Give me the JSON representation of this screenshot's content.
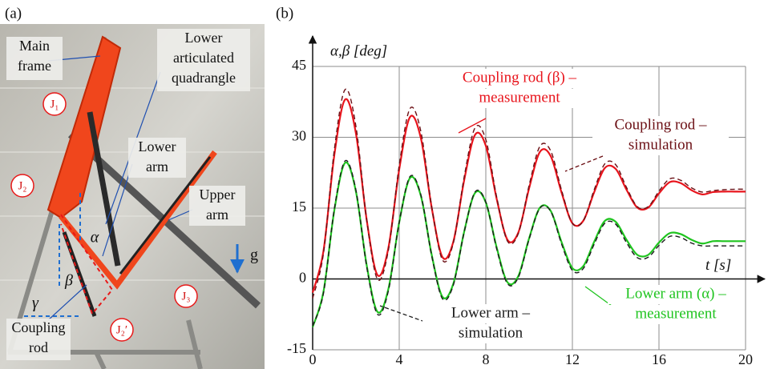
{
  "panel_a": {
    "label": "(a)",
    "callouts": [
      [
        "Main",
        "frame"
      ],
      [
        "Lower",
        "articulated",
        "quadrangle"
      ],
      [
        "Lower",
        "arm"
      ],
      [
        "Upper",
        "arm"
      ],
      [
        "Coupling",
        "rod"
      ]
    ],
    "joints": [
      "J₁",
      "J₂",
      "J₃",
      "J₂′"
    ],
    "angles": [
      "α",
      "β",
      "γ"
    ],
    "gravity": "g"
  },
  "chart_data": {
    "type": "line",
    "label": "(b)",
    "y_label": "α,β [deg]",
    "x_label": "t [s]",
    "xlim": [
      0,
      20
    ],
    "ylim": [
      -15,
      45
    ],
    "xticks": [
      0,
      4,
      8,
      12,
      16,
      20
    ],
    "yticks": [
      -15,
      0,
      15,
      30,
      45
    ],
    "grid": true,
    "x": [
      0,
      0.5,
      1,
      1.5,
      2,
      2.5,
      3,
      3.5,
      4,
      4.5,
      5,
      5.5,
      6,
      6.5,
      7,
      7.5,
      8,
      8.5,
      9,
      9.5,
      10,
      10.5,
      11,
      11.5,
      12,
      12.5,
      13,
      13.5,
      14,
      14.5,
      15,
      15.5,
      16,
      16.5,
      17,
      17.5,
      18,
      18.5,
      19,
      19.5,
      20
    ],
    "series": [
      {
        "name": [
          "Coupling rod (β) –",
          "measurement"
        ],
        "color": "#e8141c",
        "style": "solid",
        "values": [
          -2.9,
          5.9,
          26.2,
          38.0,
          30.8,
          12.4,
          0.8,
          6.6,
          23.2,
          34.3,
          29.8,
          15.1,
          4.6,
          7.9,
          20.9,
          30.5,
          28.2,
          17.0,
          8.3,
          9.8,
          19.2,
          26.9,
          26.0,
          18.3,
          11.8,
          12.3,
          18.3,
          23.5,
          23.3,
          18.9,
          15.1,
          15.1,
          18.1,
          20.5,
          20.3,
          18.8,
          17.9,
          18.4,
          18.5,
          18.5,
          18.5
        ]
      },
      {
        "name": [
          "Coupling rod –",
          "simulation"
        ],
        "color": "#6b0f14",
        "style": "dashed",
        "values": [
          -4.1,
          5.4,
          27.3,
          40.1,
          32.3,
          12.4,
          -0.1,
          6.1,
          24.1,
          36.1,
          31.2,
          15.3,
          4.0,
          7.6,
          21.6,
          32.0,
          29.5,
          17.4,
          8.0,
          9.6,
          19.8,
          28.1,
          27.1,
          18.8,
          11.8,
          12.3,
          18.8,
          24.4,
          24.2,
          19.4,
          15.3,
          15.3,
          18.6,
          21.2,
          20.9,
          19.3,
          18.4,
          18.7,
          18.9,
          19.0,
          19.0
        ]
      },
      {
        "name": [
          "Lower arm (α) –",
          "measurement"
        ],
        "color": "#1fc41f",
        "style": "solid",
        "values": [
          -10.2,
          -2.7,
          14.5,
          24.6,
          18.5,
          2.8,
          -7.0,
          -2.1,
          12.0,
          21.4,
          17.6,
          5.1,
          -3.8,
          -1.0,
          10.0,
          18.2,
          16.2,
          6.7,
          -0.7,
          0.6,
          8.6,
          15.1,
          14.4,
          7.8,
          2.3,
          2.7,
          7.8,
          12.3,
          12.1,
          8.3,
          5.1,
          5.1,
          7.7,
          9.7,
          9.5,
          8.3,
          7.5,
          8.0,
          8.0,
          8.0,
          8.0
        ]
      },
      {
        "name": [
          "Lower arm –",
          "simulation"
        ],
        "color": "#1a1a1a",
        "style": "dashed",
        "values": [
          -10.0,
          -3.0,
          14.8,
          25.0,
          18.8,
          2.5,
          -7.5,
          -2.5,
          12.0,
          21.7,
          17.8,
          4.9,
          -4.2,
          -1.3,
          9.9,
          18.4,
          16.3,
          6.4,
          -1.0,
          0.3,
          8.4,
          15.0,
          14.3,
          7.4,
          1.8,
          2.2,
          7.3,
          11.8,
          11.6,
          7.7,
          4.5,
          4.6,
          7.1,
          9.0,
          8.8,
          7.6,
          7.0,
          7.0,
          7.0,
          7.0,
          7.0
        ]
      }
    ]
  }
}
